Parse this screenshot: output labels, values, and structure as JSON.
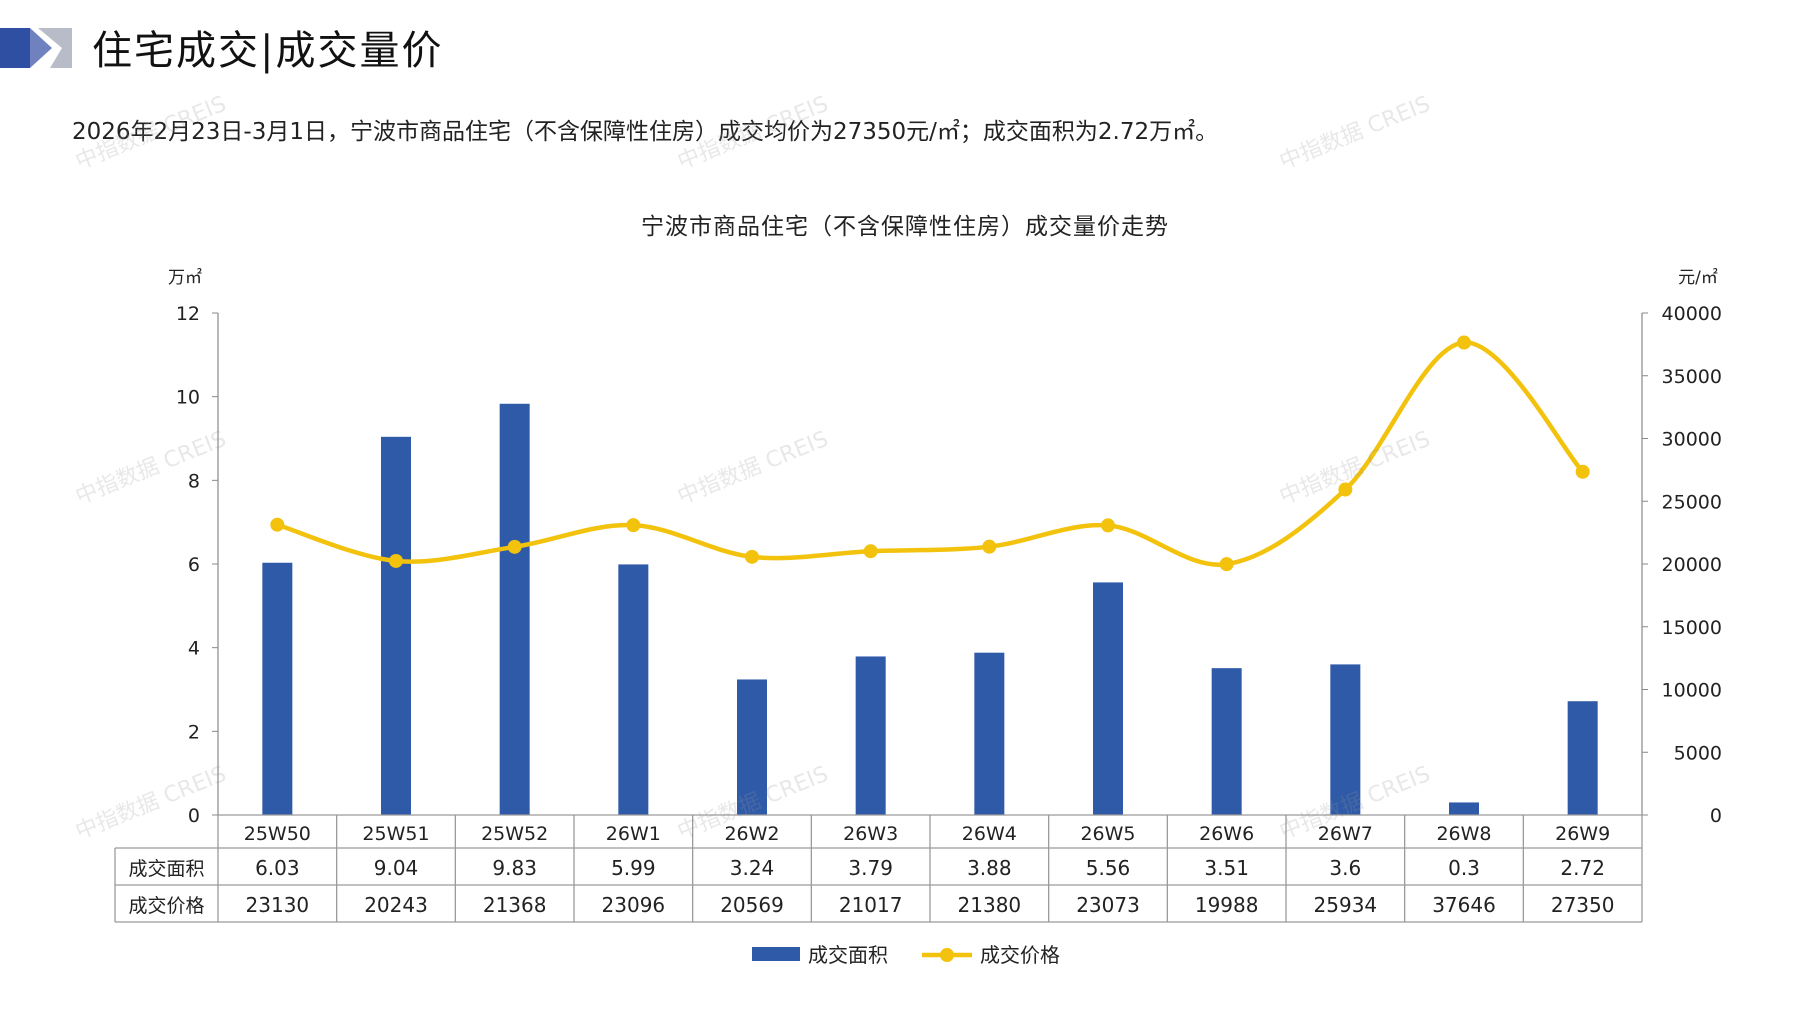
{
  "header": {
    "title": "住宅成交|成交量价",
    "summary": "2026年2月23日-3月1日，宁波市商品住宅（不含保障性住房）成交均价为27350元/㎡；成交面积为2.72万㎡。"
  },
  "watermark": "中指数据 CREIS",
  "colors": {
    "bar": "#2f5aa8",
    "line": "#f2c20c",
    "axis": "#888888",
    "text": "#222222",
    "logo_dark": "#2f4fa3",
    "logo_light": "#b8bcc8"
  },
  "chart_data": {
    "type": "bar",
    "title": "宁波市商品住宅（不含保障性住房）成交量价走势",
    "y_left_unit": "万㎡",
    "y_right_unit": "元/㎡",
    "ylim_left": [
      0,
      12
    ],
    "ylim_right": [
      0,
      40000
    ],
    "y_left_ticks": [
      "0",
      "2",
      "4",
      "6",
      "8",
      "10",
      "12"
    ],
    "y_right_ticks": [
      "0",
      "5000",
      "10000",
      "15000",
      "20000",
      "25000",
      "30000",
      "35000",
      "40000"
    ],
    "categories": [
      "25W50",
      "25W51",
      "25W52",
      "26W1",
      "26W2",
      "26W3",
      "26W4",
      "26W5",
      "26W6",
      "26W7",
      "26W8",
      "26W9"
    ],
    "series": [
      {
        "name": "成交面积",
        "type": "bar",
        "axis": "left",
        "values": [
          6.03,
          9.04,
          9.83,
          5.99,
          3.24,
          3.79,
          3.88,
          5.56,
          3.51,
          3.6,
          0.3,
          2.72
        ],
        "labels": [
          "6.03",
          "9.04",
          "9.83",
          "5.99",
          "3.24",
          "3.79",
          "3.88",
          "5.56",
          "3.51",
          "3.6",
          "0.3",
          "2.72"
        ]
      },
      {
        "name": "成交价格",
        "type": "line",
        "axis": "right",
        "values": [
          23130,
          20243,
          21368,
          23096,
          20569,
          21017,
          21380,
          23073,
          19988,
          25934,
          37646,
          27350
        ],
        "labels": [
          "23130",
          "20243",
          "21368",
          "23096",
          "20569",
          "21017",
          "21380",
          "23073",
          "19988",
          "25934",
          "37646",
          "27350"
        ]
      }
    ],
    "legend": "bottom",
    "data_table": true
  }
}
